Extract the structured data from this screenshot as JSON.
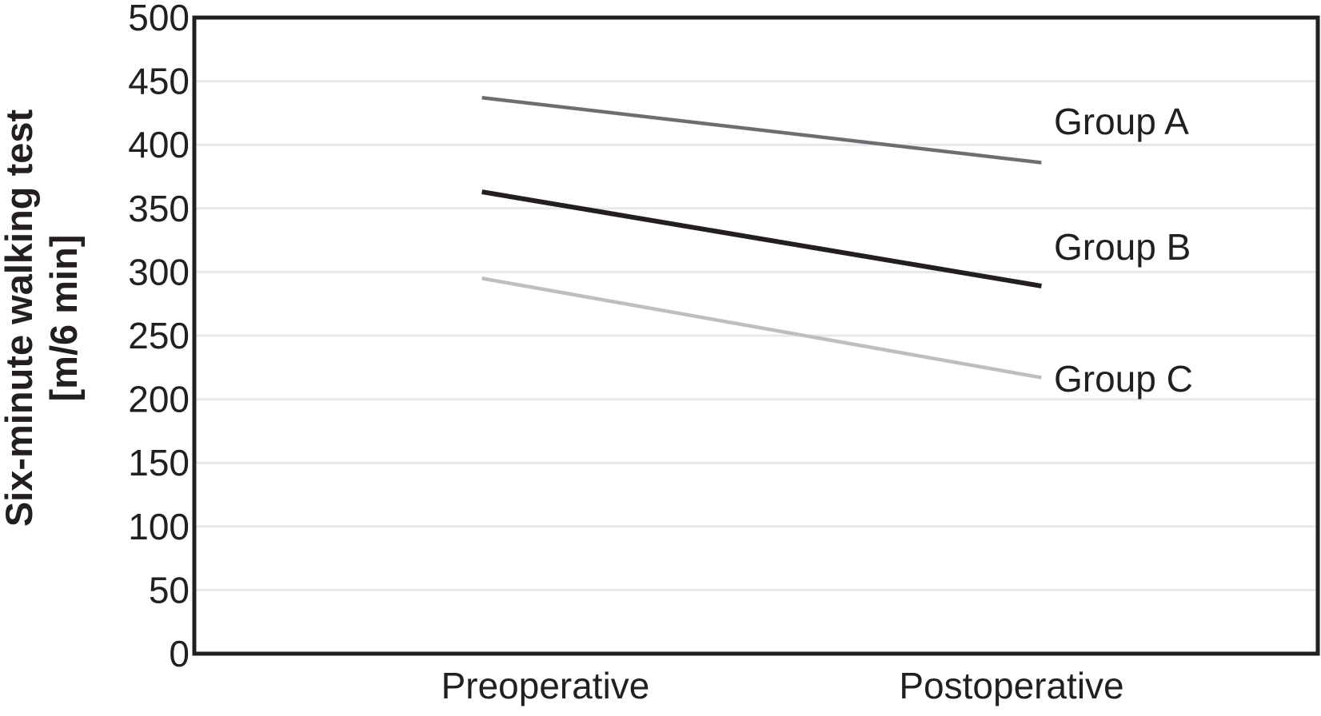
{
  "figure": {
    "y_axis_title_line1": "Six-minute walking test",
    "y_axis_title_line2": "[m/6 min]"
  },
  "chart_data": {
    "type": "line",
    "title": "",
    "categories": [
      "Preoperative",
      "Postoperative"
    ],
    "series": [
      {
        "name": "Group A",
        "values": [
          437,
          386
        ],
        "color": "#6d6e71",
        "stroke_width": 4.5
      },
      {
        "name": "Group B",
        "values": [
          363,
          289
        ],
        "color": "#231f20",
        "stroke_width": 6
      },
      {
        "name": "Group C",
        "values": [
          295,
          217
        ],
        "color": "#bcbec0",
        "stroke_width": 4.5
      }
    ],
    "xlabel": "",
    "ylabel": "Six-minute walking test [m/6 min]",
    "ylim": [
      0,
      500
    ],
    "ytick_step": 50,
    "yticks": [
      0,
      50,
      100,
      150,
      200,
      250,
      300,
      350,
      400,
      450,
      500
    ],
    "grid": "horizontal",
    "gridline_color": "#e6e7e8",
    "axis_box_color": "#231f20",
    "text_color": "#231f20",
    "legend_position": "right-inline-labels"
  }
}
